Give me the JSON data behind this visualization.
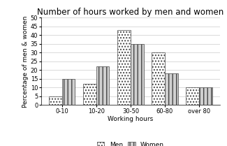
{
  "title": "Number of hours worked by men and women",
  "xlabel": "Working hours",
  "ylabel": "Percentage of men & women",
  "categories": [
    "0-10",
    "10-20",
    "30-50",
    "60-80",
    "over 80"
  ],
  "men_values": [
    5,
    12,
    43,
    30,
    10
  ],
  "women_values": [
    15,
    22,
    35,
    18,
    10
  ],
  "ylim": [
    0,
    50
  ],
  "yticks": [
    0,
    5,
    10,
    15,
    20,
    25,
    30,
    35,
    40,
    45,
    50
  ],
  "bar_width": 0.38,
  "men_hatch": "....",
  "women_hatch": "|||",
  "men_facecolor": "#ffffff",
  "women_facecolor": "#d0d0d0",
  "edge_color": "#444444",
  "background_color": "#ffffff",
  "title_fontsize": 8.5,
  "axis_label_fontsize": 6.5,
  "tick_fontsize": 6,
  "legend_fontsize": 6.5
}
